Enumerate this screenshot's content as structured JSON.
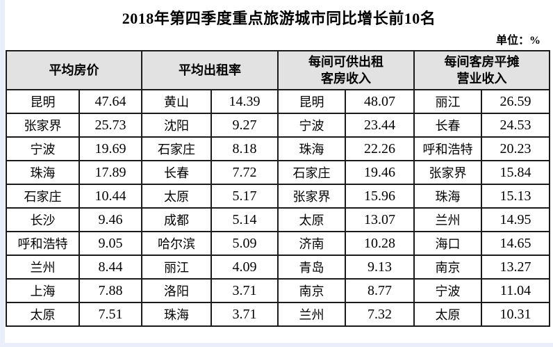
{
  "title": "2018年第四季度重点旅游城市同比增长前10名",
  "unit_label": "单位：%",
  "colors": {
    "header_bg": "#e2e2e2",
    "grid_border": "#1b1b1b",
    "page_bg": "#ffffff",
    "edge_tint": "#e9eefa"
  },
  "table": {
    "groups": [
      {
        "header": "平均房价",
        "rows": [
          [
            "昆明",
            "47.64"
          ],
          [
            "张家界",
            "25.73"
          ],
          [
            "宁波",
            "19.69"
          ],
          [
            "珠海",
            "17.89"
          ],
          [
            "石家庄",
            "10.44"
          ],
          [
            "长沙",
            "9.46"
          ],
          [
            "呼和浩特",
            "9.05"
          ],
          [
            "兰州",
            "8.44"
          ],
          [
            "上海",
            "7.88"
          ],
          [
            "太原",
            "7.51"
          ]
        ]
      },
      {
        "header": "平均出租率",
        "rows": [
          [
            "黄山",
            "14.39"
          ],
          [
            "沈阳",
            "9.27"
          ],
          [
            "石家庄",
            "8.18"
          ],
          [
            "长春",
            "7.72"
          ],
          [
            "太原",
            "5.17"
          ],
          [
            "成都",
            "5.14"
          ],
          [
            "哈尔滨",
            "5.09"
          ],
          [
            "丽江",
            "4.09"
          ],
          [
            "洛阳",
            "3.71"
          ],
          [
            "珠海",
            "3.71"
          ]
        ]
      },
      {
        "header": "每间可供出租\n客房收入",
        "rows": [
          [
            "昆明",
            "48.07"
          ],
          [
            "宁波",
            "23.44"
          ],
          [
            "珠海",
            "22.26"
          ],
          [
            "石家庄",
            "19.46"
          ],
          [
            "张家界",
            "15.96"
          ],
          [
            "太原",
            "13.07"
          ],
          [
            "济南",
            "10.28"
          ],
          [
            "青岛",
            "9.13"
          ],
          [
            "南京",
            "8.77"
          ],
          [
            "兰州",
            "7.32"
          ]
        ]
      },
      {
        "header": "每间客房平摊\n营业收入",
        "rows": [
          [
            "丽江",
            "26.59"
          ],
          [
            "长春",
            "24.53"
          ],
          [
            "呼和浩特",
            "20.23"
          ],
          [
            "张家界",
            "15.84"
          ],
          [
            "珠海",
            "15.13"
          ],
          [
            "兰州",
            "14.95"
          ],
          [
            "海口",
            "14.65"
          ],
          [
            "南京",
            "13.27"
          ],
          [
            "宁波",
            "11.04"
          ],
          [
            "太原",
            "10.31"
          ]
        ]
      }
    ]
  }
}
